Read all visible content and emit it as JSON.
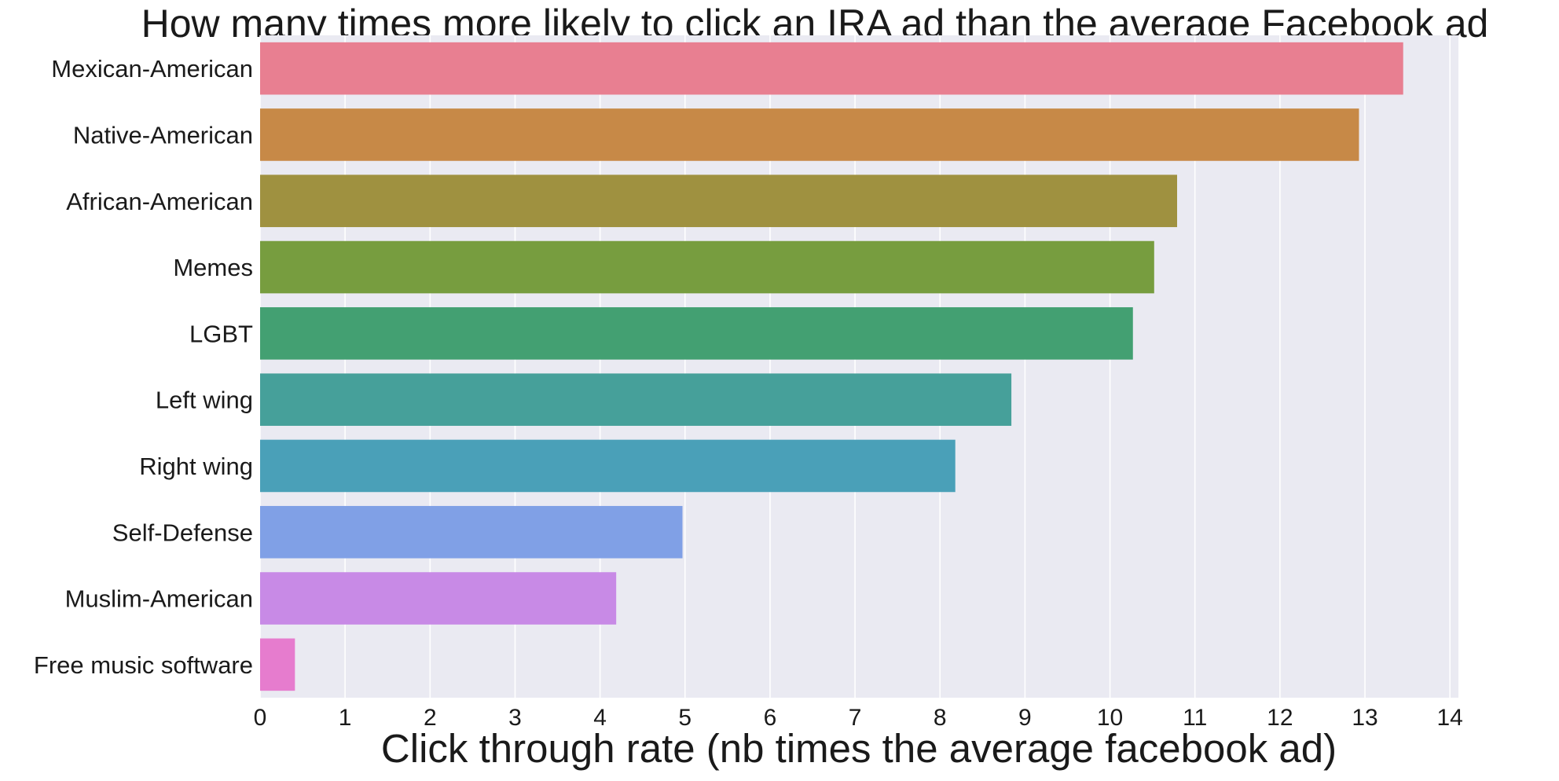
{
  "chart_data": {
    "type": "bar",
    "orientation": "horizontal",
    "title": "How many times more likely to click an IRA ad than the average Facebook ad",
    "xlabel": "Click through rate (nb times the average facebook ad)",
    "ylabel": "",
    "xlim": [
      0,
      14.1
    ],
    "x_ticks": [
      "0",
      "1",
      "2",
      "3",
      "4",
      "5",
      "6",
      "7",
      "8",
      "9",
      "10",
      "11",
      "12",
      "13",
      "14"
    ],
    "grid": true,
    "categories": [
      "Mexican-American",
      "Native-American",
      "African-American",
      "Memes",
      "LGBT",
      "Left wing",
      "Right wing",
      "Self-Defense",
      "Muslim-American",
      "Free music software"
    ],
    "values": [
      13.45,
      12.93,
      10.79,
      10.52,
      10.27,
      8.84,
      8.18,
      4.97,
      4.19,
      0.41
    ],
    "colors": [
      "#e87f91",
      "#c78947",
      "#9f9140",
      "#779d3f",
      "#43a072",
      "#46a09a",
      "#4aa0b8",
      "#80a0e6",
      "#c88ae6",
      "#e67cce"
    ],
    "background": "#eaeaf2",
    "grid_color": "#ffffff"
  }
}
